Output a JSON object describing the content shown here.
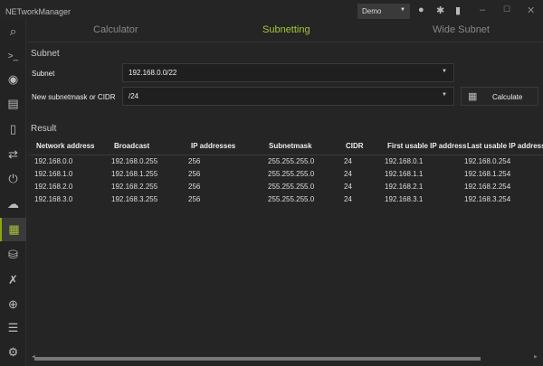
{
  "app": {
    "title": "NETworkManager",
    "profile": "Demo"
  },
  "titlebar_icons": [
    "github-icon",
    "bug-icon",
    "book-icon",
    "minimize-icon",
    "maximize-icon",
    "close-icon"
  ],
  "sidebar": {
    "items": [
      "search",
      "terminal",
      "eye",
      "dashboard",
      "server",
      "transfer",
      "power",
      "cloud-search",
      "calculator",
      "database-search",
      "plug",
      "globe",
      "list",
      "settings"
    ],
    "active": "calculator",
    "accent": "#a4c639"
  },
  "tabs": [
    {
      "label": "Calculator"
    },
    {
      "label": "Subnetting",
      "selected": true
    },
    {
      "label": "Wide Subnet"
    }
  ],
  "form": {
    "section": "Subnet",
    "subnet_label": "Subnet",
    "subnet_value": "192.168.0.0/22",
    "cidr_label": "New subnetmask or CIDR",
    "cidr_value": "/24",
    "calculate": "Calculate"
  },
  "result": {
    "title": "Result",
    "columns": [
      "Network address",
      "Broadcast",
      "IP addresses",
      "Subnetmask",
      "CIDR",
      "First usable IP address",
      "Last usable IP address"
    ],
    "rows": [
      [
        "192.168.0.0",
        "192.168.0.255",
        "256",
        "255.255.255.0",
        "24",
        "192.168.0.1",
        "192.168.0.254"
      ],
      [
        "192.168.1.0",
        "192.168.1.255",
        "256",
        "255.255.255.0",
        "24",
        "192.168.1.1",
        "192.168.1.254"
      ],
      [
        "192.168.2.0",
        "192.168.2.255",
        "256",
        "255.255.255.0",
        "24",
        "192.168.2.1",
        "192.168.2.254"
      ],
      [
        "192.168.3.0",
        "192.168.3.255",
        "256",
        "255.255.255.0",
        "24",
        "192.168.3.1",
        "192.168.3.254"
      ]
    ]
  }
}
